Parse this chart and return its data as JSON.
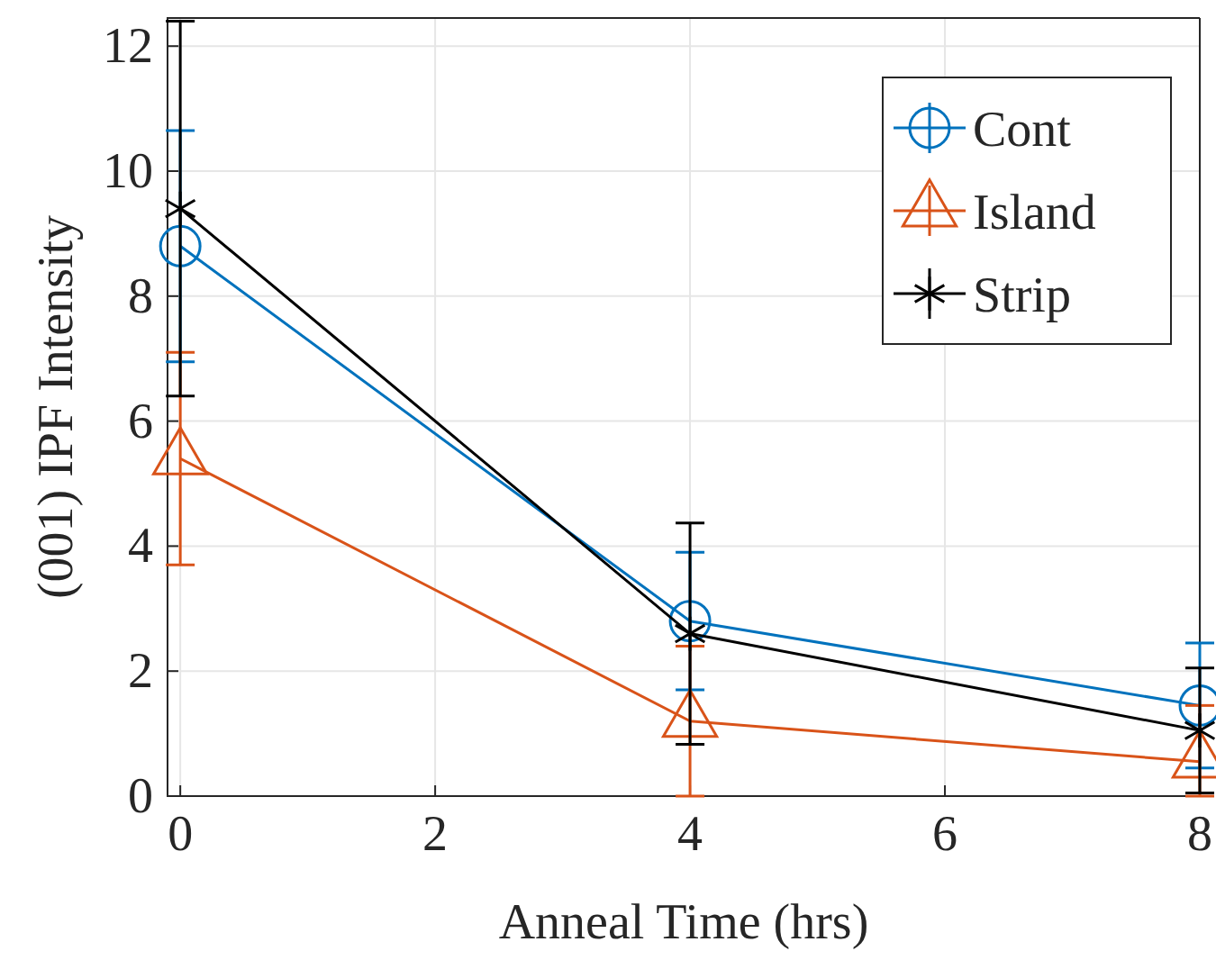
{
  "chart_data": {
    "type": "line",
    "xlabel": "Anneal Time (hrs)",
    "ylabel": "(001) IPF Intensity",
    "x": [
      0,
      4,
      8
    ],
    "xlim": [
      -0.1,
      8
    ],
    "xticks": [
      0,
      2,
      4,
      6,
      8
    ],
    "ylim": [
      0,
      12.45
    ],
    "yticks": [
      0,
      2,
      4,
      6,
      8,
      10,
      12
    ],
    "grid": true,
    "legend": "top right",
    "series": [
      {
        "name": "Cont",
        "color": "#0072bd",
        "marker": "circle",
        "values": [
          8.8,
          2.8,
          1.45
        ],
        "errors": [
          1.85,
          1.1,
          1.0
        ]
      },
      {
        "name": "Island",
        "color": "#d95319",
        "marker": "triangle",
        "values": [
          5.4,
          1.2,
          0.55
        ],
        "errors": [
          1.7,
          [
            0,
            2.4
          ],
          [
            0,
            1.45
          ]
        ]
      },
      {
        "name": "Strip",
        "color": "#000000",
        "marker": "cross",
        "values": [
          9.4,
          2.6,
          1.05
        ],
        "errors": [
          3.0,
          1.77,
          1.0
        ]
      }
    ]
  }
}
